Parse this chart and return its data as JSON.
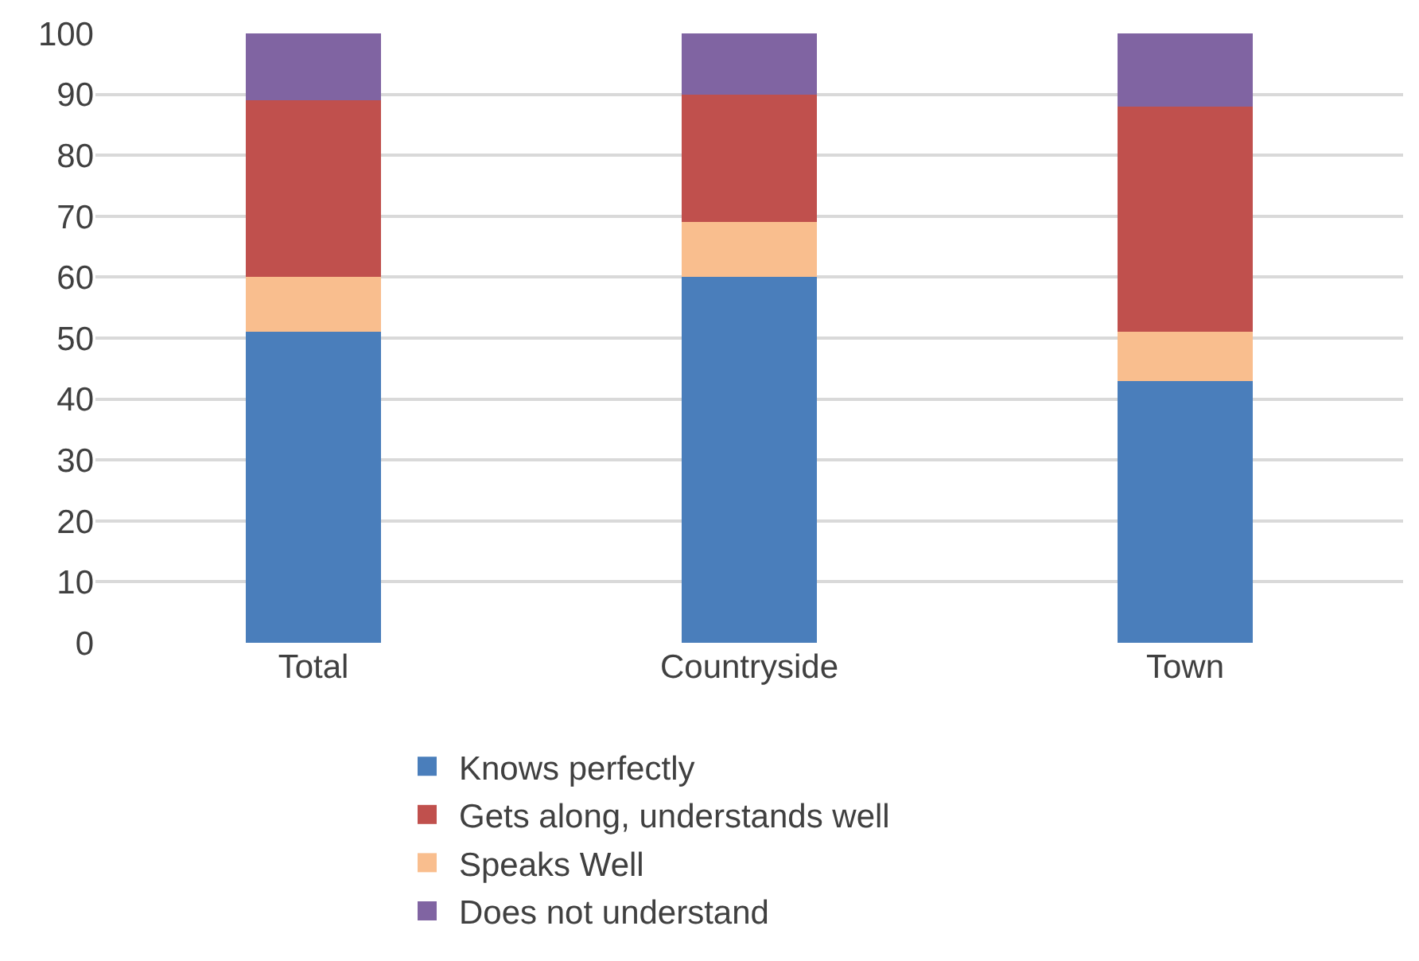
{
  "chart_data": {
    "type": "bar",
    "stacked": true,
    "categories": [
      "Total",
      "Countryside",
      "Town"
    ],
    "series": [
      {
        "name": "Knows perfectly",
        "color": "#4a7ebb",
        "values": [
          51,
          60,
          43
        ]
      },
      {
        "name": "Speaks Well",
        "color": "#f9be8e",
        "values": [
          9,
          9,
          8
        ]
      },
      {
        "name": "Gets along, understands well",
        "color": "#c0504d",
        "values": [
          29,
          21,
          37
        ]
      },
      {
        "name": "Does not understand",
        "color": "#8064a2",
        "values": [
          11,
          10,
          12
        ]
      }
    ],
    "ylim": [
      0,
      100
    ],
    "yticks": [
      0,
      10,
      20,
      30,
      40,
      50,
      60,
      70,
      80,
      90,
      100
    ],
    "grid": "y",
    "legend": "bottom"
  }
}
